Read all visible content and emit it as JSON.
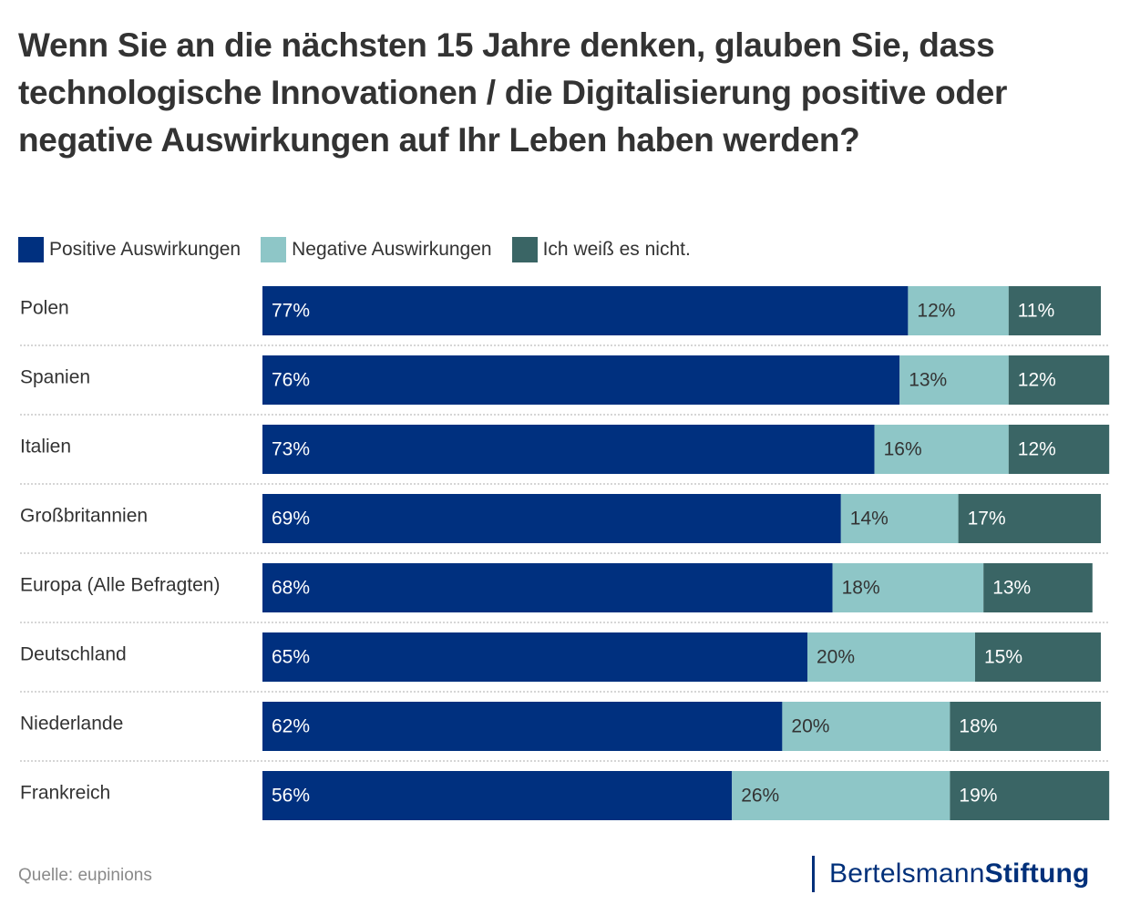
{
  "header": {
    "title": "Wenn Sie an die nächsten 15 Jahre denken, glauben Sie, dass technologische Innovationen / die Digitalisierung positive oder negative Auswirkungen auf Ihr Leben haben werden?"
  },
  "legend": [
    {
      "label": "Positive Auswirkungen",
      "color": "#00307f"
    },
    {
      "label": "Negative Auswirkungen",
      "color": "#8ec6c7"
    },
    {
      "label": "Ich weiß es nicht.",
      "color": "#3a6565"
    }
  ],
  "footer": {
    "source": "Quelle: eupinions",
    "brand_regular": "Bertelsmann",
    "brand_bold": "Stiftung",
    "brand_color": "#00307a"
  },
  "chart_data": {
    "type": "bar",
    "orientation": "horizontal",
    "stacked": true,
    "title": "Wenn Sie an die nächsten 15 Jahre denken, glauben Sie, dass technologische Innovationen / die Digitalisierung positive oder negative Auswirkungen auf Ihr Leben haben werden?",
    "xlabel": "",
    "ylabel": "",
    "xlim": [
      0,
      100
    ],
    "grid": false,
    "legend_position": "top-left",
    "value_format": "{v}%",
    "categories": [
      "Polen",
      "Spanien",
      "Italien",
      "Großbritannien",
      "Europa (Alle Befragten)",
      "Deutschland",
      "Niederlande",
      "Frankreich"
    ],
    "series": [
      {
        "name": "Positive Auswirkungen",
        "color": "#00307f",
        "label_color": "#ffffff",
        "values": [
          77,
          76,
          73,
          69,
          68,
          65,
          62,
          56
        ]
      },
      {
        "name": "Negative Auswirkungen",
        "color": "#8ec6c7",
        "label_color": "#333333",
        "values": [
          12,
          13,
          16,
          14,
          18,
          20,
          20,
          26
        ]
      },
      {
        "name": "Ich weiß es nicht.",
        "color": "#3a6565",
        "label_color": "#ffffff",
        "values": [
          11,
          12,
          12,
          17,
          13,
          15,
          18,
          19
        ]
      }
    ]
  }
}
